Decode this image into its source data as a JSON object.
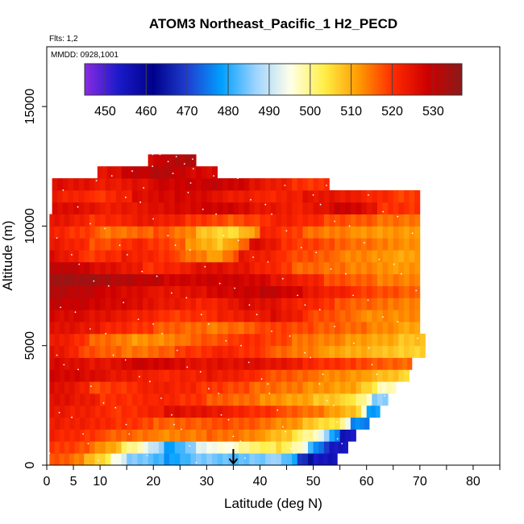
{
  "chart_data": {
    "type": "heatmap",
    "title": "ATOM3 Northeast_Pacific_1 H2_PECD",
    "flights_label": "Flts: 1,2",
    "date_label": "MMDD: 0928,1001",
    "xlabel": "Latitude (deg N)",
    "ylabel": "Altitude (m)",
    "xlim": [
      0,
      85
    ],
    "ylim": [
      0,
      17500
    ],
    "x_ticks": [
      0,
      5,
      10,
      20,
      30,
      40,
      50,
      60,
      70,
      80
    ],
    "x_minor_ticks": [
      15,
      25,
      35,
      45,
      55,
      65,
      75,
      85
    ],
    "y_ticks": [
      0,
      5000,
      10000,
      15000
    ],
    "colorbar": {
      "min": 445,
      "max": 537,
      "ticks": [
        450,
        460,
        470,
        480,
        490,
        500,
        510,
        520,
        530
      ],
      "colors": [
        "#8a2be2",
        "#1a1ac8",
        "#00008b",
        "#1f3fd0",
        "#00a0ff",
        "#9fd4ff",
        "#ffffe8",
        "#ffee44",
        "#ff9900",
        "#ff2a00",
        "#cc0000",
        "#8b1a1a"
      ]
    },
    "marker_arrow_latitude": 35,
    "altitude_bins_m": [
      0,
      500,
      1000,
      1500,
      2000,
      2500,
      3000,
      3500,
      4000,
      4500,
      5000,
      5500,
      6000,
      6500,
      7000,
      7500,
      8000,
      8500,
      9000,
      9500,
      10000,
      10500,
      11000,
      11500,
      12000,
      12500
    ],
    "layers": [
      {
        "alt": 0,
        "lat_range": [
          0.5,
          54.5
        ],
        "segments": [
          [
            0.5,
            518
          ],
          [
            7,
            510
          ],
          [
            12,
            496
          ],
          [
            15,
            486
          ],
          [
            22,
            478
          ],
          [
            27,
            485
          ],
          [
            35,
            483
          ],
          [
            42,
            488
          ],
          [
            47,
            470
          ],
          [
            50,
            455
          ]
        ]
      },
      {
        "alt": 500,
        "lat_range": [
          0.5,
          56.5
        ],
        "segments": [
          [
            0.5,
            520
          ],
          [
            8,
            515
          ],
          [
            14,
            502
          ],
          [
            18,
            494
          ],
          [
            22,
            478
          ],
          [
            28,
            493
          ],
          [
            36,
            500
          ],
          [
            43,
            506
          ],
          [
            49,
            482
          ],
          [
            53,
            455
          ]
        ]
      },
      {
        "alt": 1000,
        "lat_range": [
          0.5,
          58.0
        ],
        "segments": [
          [
            0.5,
            522
          ],
          [
            10,
            517
          ],
          [
            20,
            513
          ],
          [
            30,
            516
          ],
          [
            40,
            511
          ],
          [
            46,
            503
          ],
          [
            51,
            492
          ],
          [
            55,
            455
          ]
        ]
      },
      {
        "alt": 1500,
        "lat_range": [
          0.5,
          60.5
        ],
        "segments": [
          [
            0.5,
            523
          ],
          [
            10,
            521
          ],
          [
            20,
            516
          ],
          [
            32,
            518
          ],
          [
            40,
            515
          ],
          [
            48,
            508
          ],
          [
            55,
            500
          ],
          [
            57,
            476
          ]
        ]
      },
      {
        "alt": 2000,
        "lat_range": [
          0.5,
          62.5
        ],
        "segments": [
          [
            0.5,
            524
          ],
          [
            12,
            519
          ],
          [
            22,
            526
          ],
          [
            34,
            522
          ],
          [
            44,
            517
          ],
          [
            52,
            512
          ],
          [
            58,
            505
          ],
          [
            60,
            478
          ]
        ]
      },
      {
        "alt": 2500,
        "lat_range": [
          0.5,
          64.0
        ],
        "segments": [
          [
            0.5,
            526
          ],
          [
            10,
            520
          ],
          [
            20,
            522
          ],
          [
            30,
            517
          ],
          [
            40,
            513
          ],
          [
            50,
            508
          ],
          [
            56,
            506
          ],
          [
            61,
            486
          ]
        ]
      },
      {
        "alt": 3000,
        "lat_range": [
          0.5,
          65.5
        ],
        "segments": [
          [
            0.5,
            527
          ],
          [
            8,
            518
          ],
          [
            18,
            523
          ],
          [
            28,
            520
          ],
          [
            38,
            516
          ],
          [
            48,
            513
          ],
          [
            58,
            509
          ],
          [
            62,
            498
          ]
        ]
      },
      {
        "alt": 3500,
        "lat_range": [
          0.5,
          68.0
        ],
        "segments": [
          [
            0.5,
            528
          ],
          [
            10,
            525
          ],
          [
            20,
            521
          ],
          [
            30,
            524
          ],
          [
            40,
            518
          ],
          [
            50,
            514
          ],
          [
            60,
            510
          ],
          [
            66,
            505
          ]
        ]
      },
      {
        "alt": 4000,
        "lat_range": [
          0.5,
          68.5
        ],
        "segments": [
          [
            0.5,
            527
          ],
          [
            8,
            524
          ],
          [
            16,
            529
          ],
          [
            26,
            525
          ],
          [
            38,
            526
          ],
          [
            48,
            521
          ],
          [
            58,
            518
          ],
          [
            64,
            516
          ]
        ]
      },
      {
        "alt": 4500,
        "lat_range": [
          0.5,
          71.0
        ],
        "segments": [
          [
            0.5,
            525
          ],
          [
            6,
            518
          ],
          [
            14,
            514
          ],
          [
            24,
            519
          ],
          [
            32,
            522
          ],
          [
            42,
            516
          ],
          [
            52,
            511
          ],
          [
            62,
            508
          ],
          [
            68,
            506
          ]
        ]
      },
      {
        "alt": 5000,
        "lat_range": [
          0.5,
          71.0
        ],
        "segments": [
          [
            0.5,
            524
          ],
          [
            8,
            516
          ],
          [
            16,
            512
          ],
          [
            26,
            516
          ],
          [
            36,
            521
          ],
          [
            46,
            515
          ],
          [
            56,
            512
          ],
          [
            66,
            508
          ]
        ]
      },
      {
        "alt": 5500,
        "lat_range": [
          0.5,
          70.0
        ],
        "segments": [
          [
            0.5,
            526
          ],
          [
            10,
            522
          ],
          [
            20,
            517
          ],
          [
            30,
            514
          ],
          [
            40,
            519
          ],
          [
            50,
            517
          ],
          [
            60,
            514
          ],
          [
            66,
            511
          ]
        ]
      },
      {
        "alt": 6000,
        "lat_range": [
          0.5,
          70.0
        ],
        "segments": [
          [
            0.5,
            527
          ],
          [
            6,
            526
          ],
          [
            14,
            523
          ],
          [
            22,
            519
          ],
          [
            32,
            522
          ],
          [
            42,
            526
          ],
          [
            48,
            519
          ],
          [
            58,
            513
          ]
        ]
      },
      {
        "alt": 6500,
        "lat_range": [
          0.5,
          70.0
        ],
        "segments": [
          [
            0.5,
            530
          ],
          [
            8,
            528
          ],
          [
            18,
            525
          ],
          [
            28,
            521
          ],
          [
            36,
            527
          ],
          [
            44,
            523
          ],
          [
            54,
            517
          ],
          [
            64,
            514
          ]
        ]
      },
      {
        "alt": 7000,
        "lat_range": [
          0.5,
          70.0
        ],
        "segments": [
          [
            0.5,
            532
          ],
          [
            10,
            528
          ],
          [
            20,
            524
          ],
          [
            30,
            527
          ],
          [
            40,
            531
          ],
          [
            48,
            524
          ],
          [
            58,
            519
          ],
          [
            66,
            516
          ]
        ]
      },
      {
        "alt": 7500,
        "lat_range": [
          0.5,
          70.0
        ],
        "segments": [
          [
            0.5,
            535
          ],
          [
            12,
            532
          ],
          [
            22,
            528
          ],
          [
            32,
            529
          ],
          [
            42,
            525
          ],
          [
            52,
            518
          ],
          [
            62,
            514
          ]
        ]
      },
      {
        "alt": 8000,
        "lat_range": [
          0.5,
          70.0
        ],
        "segments": [
          [
            0.5,
            531
          ],
          [
            8,
            527
          ],
          [
            18,
            520
          ],
          [
            28,
            526
          ],
          [
            38,
            523
          ],
          [
            46,
            516
          ],
          [
            56,
            514
          ],
          [
            64,
            512
          ]
        ]
      },
      {
        "alt": 8500,
        "lat_range": [
          0.5,
          70.0
        ],
        "segments": [
          [
            0.5,
            526
          ],
          [
            6,
            519
          ],
          [
            14,
            523
          ],
          [
            24,
            517
          ],
          [
            30,
            510
          ],
          [
            36,
            524
          ],
          [
            44,
            519
          ],
          [
            54,
            514
          ],
          [
            64,
            511
          ]
        ]
      },
      {
        "alt": 9000,
        "lat_range": [
          0.5,
          70.0
        ],
        "segments": [
          [
            0.5,
            524
          ],
          [
            8,
            517
          ],
          [
            16,
            522
          ],
          [
            26,
            512
          ],
          [
            32,
            507
          ],
          [
            38,
            527
          ],
          [
            44,
            520
          ],
          [
            54,
            516
          ],
          [
            64,
            513
          ]
        ]
      },
      {
        "alt": 9500,
        "lat_range": [
          0.5,
          70.0
        ],
        "segments": [
          [
            0.5,
            522
          ],
          [
            10,
            514
          ],
          [
            20,
            518
          ],
          [
            28,
            508
          ],
          [
            34,
            504
          ],
          [
            40,
            522
          ],
          [
            48,
            515
          ],
          [
            58,
            512
          ]
        ]
      },
      {
        "alt": 10000,
        "lat_range": [
          0.5,
          70.0
        ],
        "segments": [
          [
            0.5,
            525
          ],
          [
            8,
            520
          ],
          [
            16,
            524
          ],
          [
            26,
            520
          ],
          [
            34,
            517
          ],
          [
            42,
            523
          ],
          [
            52,
            518
          ],
          [
            62,
            515
          ]
        ]
      },
      {
        "alt": 10500,
        "lat_range": [
          1.0,
          70.0
        ],
        "segments": [
          [
            1,
            527
          ],
          [
            10,
            523
          ],
          [
            20,
            526
          ],
          [
            30,
            529
          ],
          [
            38,
            525
          ],
          [
            46,
            522
          ],
          [
            54,
            530
          ],
          [
            62,
            520
          ]
        ]
      },
      {
        "alt": 11000,
        "lat_range": [
          1.0,
          70.0
        ],
        "segments": [
          [
            1,
            523
          ],
          [
            8,
            519
          ],
          [
            16,
            526
          ],
          [
            24,
            528
          ],
          [
            32,
            524
          ],
          [
            40,
            521
          ],
          [
            48,
            525
          ],
          [
            58,
            522
          ],
          [
            64,
            519
          ]
        ]
      },
      {
        "alt": 11500,
        "lat_range": [
          1.0,
          53.0
        ],
        "segments": [
          [
            1,
            526
          ],
          [
            10,
            523
          ],
          [
            20,
            528
          ],
          [
            30,
            530
          ],
          [
            38,
            525
          ],
          [
            46,
            520
          ]
        ]
      },
      {
        "alt": 12000,
        "lat_range": [
          9.5,
          32.0
        ],
        "segments": [
          [
            9.5,
            524
          ],
          [
            14,
            529
          ],
          [
            20,
            532
          ],
          [
            26,
            527
          ]
        ]
      },
      {
        "alt": 12500,
        "lat_range": [
          19.0,
          28.0
        ],
        "segments": [
          [
            19,
            528
          ],
          [
            23,
            532
          ]
        ]
      }
    ]
  }
}
